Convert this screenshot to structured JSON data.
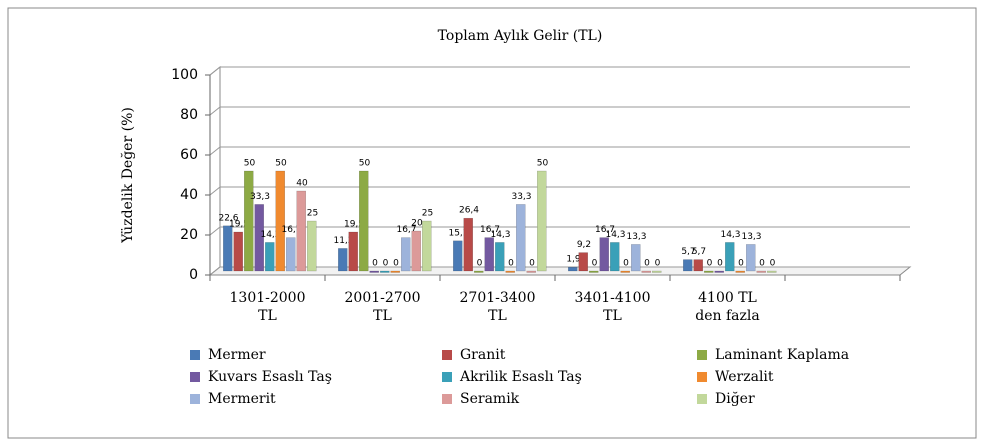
{
  "chart_data": {
    "type": "bar",
    "title": "Toplam Aylık Gelir (TL)",
    "y_label": "Yüzdelik Değer (%)",
    "categories": [
      "1301-2000\nTL",
      "2001-2700\nTL",
      "2701-3400\nTL",
      "3401-4100\nTL",
      "4100 TL\nden fazla"
    ],
    "ylim": [
      0,
      100
    ],
    "yticks": [
      0,
      20,
      40,
      60,
      80,
      100
    ],
    "grid": true,
    "series": [
      {
        "name": "Mermer",
        "color": "#4a7ab5",
        "values": [
          22.6,
          11.3,
          15.1,
          1.9,
          5.7
        ],
        "value_labels": [
          "22,6",
          "11,3",
          "15,1",
          "1,9",
          "5,7"
        ]
      },
      {
        "name": "Granit",
        "color": "#b84a48",
        "values": [
          19.5,
          19.5,
          26.4,
          9.2,
          5.7
        ],
        "value_labels": [
          "19,5",
          "19,5",
          "26,4",
          "9,2",
          "5,7"
        ]
      },
      {
        "name": "Laminant Kaplama",
        "color": "#8daa45",
        "values": [
          50,
          50,
          0,
          0,
          0
        ],
        "value_labels": [
          "50",
          "50",
          "0",
          "0",
          "0"
        ]
      },
      {
        "name": "Kuvars Esaslı Taş",
        "color": "#7359a0",
        "values": [
          33.3,
          0,
          16.7,
          16.7,
          0
        ],
        "value_labels": [
          "33,3",
          "0",
          "16,7",
          "16,7",
          "0"
        ]
      },
      {
        "name": "Akrilik Esaslı Taş",
        "color": "#3aa0b8",
        "values": [
          14.3,
          0,
          14.3,
          14.3,
          14.3
        ],
        "value_labels": [
          "14,3",
          "0",
          "14,3",
          "14,3",
          "14,3"
        ]
      },
      {
        "name": "Werzalit",
        "color": "#f08a2f",
        "values": [
          50,
          0,
          0,
          0,
          0
        ],
        "value_labels": [
          "50",
          "0",
          "0",
          "0",
          "0"
        ]
      },
      {
        "name": "Mermerit",
        "color": "#9db3db",
        "values": [
          16.7,
          16.7,
          33.3,
          13.3,
          13.3
        ],
        "value_labels": [
          "16,7",
          "16,7",
          "33,3",
          "13,3",
          "13,3"
        ]
      },
      {
        "name": "Seramik",
        "color": "#dc9a99",
        "values": [
          40,
          20,
          0,
          0,
          0
        ],
        "value_labels": [
          "40",
          "20",
          "0",
          "0",
          "0"
        ]
      },
      {
        "name": "Diğer",
        "color": "#c2d89b",
        "values": [
          25,
          25,
          50,
          0,
          0
        ],
        "value_labels": [
          "25",
          "25",
          "50",
          "0",
          "0"
        ]
      }
    ]
  }
}
